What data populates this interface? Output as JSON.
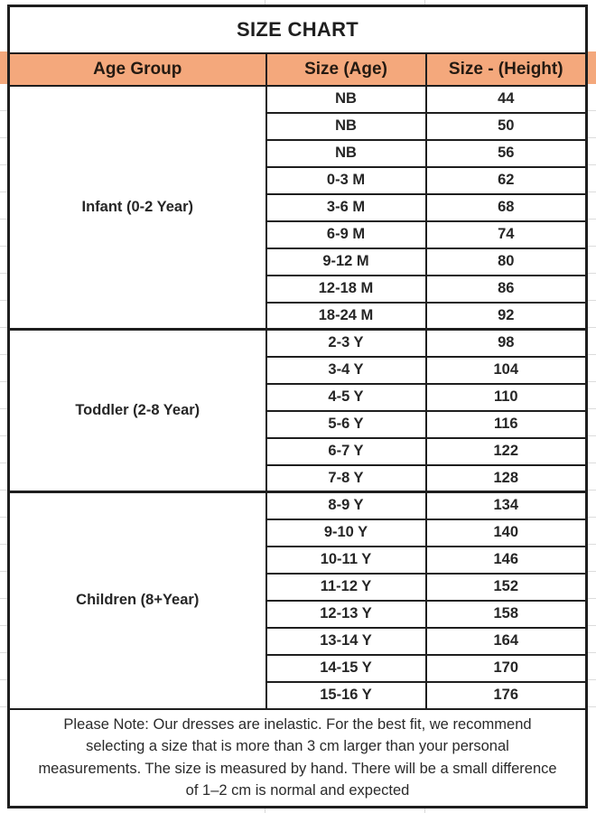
{
  "title": "SIZE CHART",
  "columns": {
    "age_group": "Age Group",
    "size_age": "Size (Age)",
    "size_height": "Size - (Height)"
  },
  "sections": [
    {
      "group": "Infant (0-2 Year)",
      "rows": [
        {
          "age": "NB",
          "height": "44"
        },
        {
          "age": "NB",
          "height": "50"
        },
        {
          "age": "NB",
          "height": "56"
        },
        {
          "age": "0-3 M",
          "height": "62"
        },
        {
          "age": "3-6 M",
          "height": "68"
        },
        {
          "age": "6-9 M",
          "height": "74"
        },
        {
          "age": "9-12 M",
          "height": "80"
        },
        {
          "age": "12-18 M",
          "height": "86"
        },
        {
          "age": "18-24 M",
          "height": "92"
        }
      ]
    },
    {
      "group": "Toddler (2-8 Year)",
      "rows": [
        {
          "age": "2-3 Y",
          "height": "98"
        },
        {
          "age": "3-4 Y",
          "height": "104"
        },
        {
          "age": "4-5 Y",
          "height": "110"
        },
        {
          "age": "5-6 Y",
          "height": "116"
        },
        {
          "age": "6-7 Y",
          "height": "122"
        },
        {
          "age": "7-8 Y",
          "height": "128"
        }
      ]
    },
    {
      "group": "Children (8+Year)",
      "rows": [
        {
          "age": "8-9 Y",
          "height": "134"
        },
        {
          "age": "9-10 Y",
          "height": "140"
        },
        {
          "age": "10-11 Y",
          "height": "146"
        },
        {
          "age": "11-12 Y",
          "height": "152"
        },
        {
          "age": "12-13 Y",
          "height": "158"
        },
        {
          "age": "13-14 Y",
          "height": "164"
        },
        {
          "age": "14-15 Y",
          "height": "170"
        },
        {
          "age": "15-16 Y",
          "height": "176"
        }
      ]
    }
  ],
  "note": "Please Note: Our dresses are inelastic. For the best fit, we recommend selecting a size that is more than 3 cm larger than your personal measurements. The size is measured by hand. There will be a small difference of 1–2 cm is normal and expected",
  "colors": {
    "header_bg": "#f4a87c",
    "border": "#1e1e1e",
    "text": "#1f1f1f",
    "margin_gridline": "#dcdcdc"
  }
}
